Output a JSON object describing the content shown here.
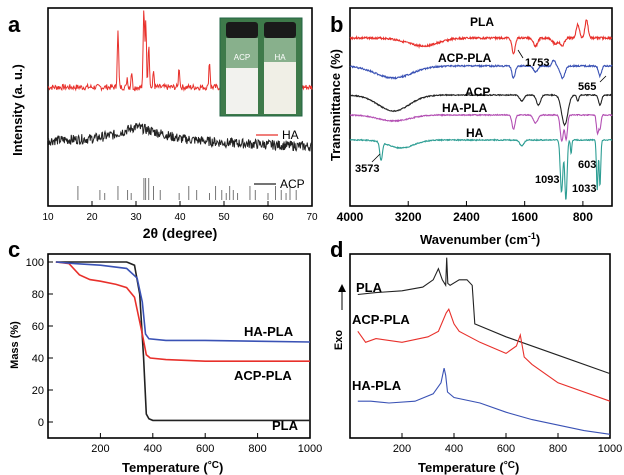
{
  "panel_labels": [
    "a",
    "b",
    "c",
    "d"
  ],
  "inset": {
    "vials": [
      "ACP",
      "HA"
    ]
  },
  "chart_data": [
    {
      "panel": "a",
      "type": "line",
      "xlabel": "2θ (degree)",
      "ylabel": "Intensity (a. u.)",
      "xlim": [
        10,
        70
      ],
      "xticks": [
        10,
        20,
        30,
        40,
        50,
        60,
        70
      ],
      "legend_position": "right",
      "series": [
        {
          "name": "HA",
          "color": "#e8302b",
          "x": [
            10,
            22,
            25.9,
            28,
            29,
            31.8,
            32.2,
            32.9,
            34,
            39.8,
            46.7,
            49.5,
            53,
            64,
            70
          ],
          "y": [
            0.58,
            0.6,
            0.88,
            0.65,
            0.68,
            1.0,
            0.95,
            0.82,
            0.68,
            0.7,
            0.73,
            0.75,
            0.66,
            0.62,
            0.6
          ]
        },
        {
          "name": "ACP",
          "color": "#222222",
          "x": [
            10,
            20,
            25,
            30,
            35,
            40,
            50,
            60,
            70
          ],
          "y": [
            0.33,
            0.34,
            0.36,
            0.4,
            0.37,
            0.34,
            0.32,
            0.31,
            0.3
          ]
        }
      ],
      "reference_peaks_2theta": [
        16.8,
        21.8,
        22.9,
        25.9,
        28.1,
        28.9,
        31.8,
        32.2,
        32.9,
        34.0,
        35.5,
        39.8,
        42.0,
        43.8,
        46.7,
        48.1,
        49.5,
        50.5,
        51.3,
        52.1,
        53.1,
        55.9,
        57.1,
        60.0,
        61.7,
        63.0,
        64.1,
        65.0,
        66.4
      ]
    },
    {
      "panel": "b",
      "type": "line",
      "xlabel": "Wavenumber (cm",
      "xlabel_sup": "-1",
      "xlabel_close": ")",
      "ylabel": "Transmittance (%)",
      "xlim": [
        4000,
        400
      ],
      "xticks": [
        4000,
        3200,
        2400,
        1600,
        800
      ],
      "xtick_labels": [
        "4000",
        "3200",
        "2400",
        "1600",
        "800"
      ],
      "series": [
        {
          "name": "PLA",
          "color": "#e8302b"
        },
        {
          "name": "ACP-PLA",
          "color": "#3a52b5"
        },
        {
          "name": "ACP",
          "color": "#222222"
        },
        {
          "name": "HA-PLA",
          "color": "#b34fb3"
        },
        {
          "name": "HA",
          "color": "#2e9e94"
        }
      ],
      "annotations": [
        "1753",
        "565",
        "3573",
        "1093",
        "1033",
        "603"
      ]
    },
    {
      "panel": "c",
      "type": "line",
      "xlabel": "Temperature (",
      "xlabel_unit": "°C",
      "xlabel_close": ")",
      "ylabel": "Mass (%)",
      "xlim": [
        0,
        1000
      ],
      "ylim": [
        -10,
        105
      ],
      "xticks": [
        200,
        400,
        600,
        800,
        1000
      ],
      "xtick_labels": [
        "200",
        "400",
        "600",
        "800",
        "1000"
      ],
      "yticks": [
        0,
        20,
        40,
        60,
        80,
        100
      ],
      "ytick_labels": [
        "0",
        "20",
        "40",
        "60",
        "80",
        "100"
      ],
      "series": [
        {
          "name": "PLA",
          "color": "#222222",
          "x": [
            30,
            300,
            330,
            350,
            365,
            375,
            385,
            400,
            600,
            1000
          ],
          "y": [
            100,
            100,
            98,
            80,
            40,
            5,
            2,
            1,
            1,
            1
          ]
        },
        {
          "name": "ACP-PLA",
          "color": "#e8302b",
          "x": [
            30,
            80,
            120,
            160,
            200,
            260,
            300,
            330,
            360,
            375,
            390,
            450,
            600,
            1000
          ],
          "y": [
            100,
            99,
            92,
            89,
            88,
            86,
            84,
            78,
            55,
            42,
            40,
            39,
            38,
            38
          ]
        },
        {
          "name": "HA-PLA",
          "color": "#3a52b5",
          "x": [
            30,
            100,
            200,
            300,
            340,
            360,
            372,
            385,
            450,
            600,
            1000
          ],
          "y": [
            100,
            99,
            98,
            96,
            90,
            75,
            55,
            52,
            51,
            51,
            50
          ]
        }
      ],
      "series_label_order": [
        "HA-PLA",
        "ACP-PLA",
        "PLA"
      ]
    },
    {
      "panel": "d",
      "type": "line",
      "xlabel": "Temperature (",
      "xlabel_unit": "°C",
      "xlabel_close": ")",
      "ylabel": "Exo",
      "xlim": [
        0,
        1000
      ],
      "xticks": [
        200,
        400,
        600,
        800,
        1000
      ],
      "xtick_labels": [
        "200",
        "400",
        "600",
        "800",
        "1000"
      ],
      "series": [
        {
          "name": "PLA",
          "color": "#222222",
          "x": [
            30,
            100,
            200,
            280,
            320,
            340,
            355,
            368,
            372,
            376,
            385,
            420,
            450,
            470,
            480,
            600,
            800,
            1000
          ],
          "y": [
            0.78,
            0.79,
            0.8,
            0.82,
            0.86,
            0.92,
            0.86,
            0.83,
            0.98,
            0.84,
            0.83,
            0.86,
            0.86,
            0.83,
            0.62,
            0.55,
            0.45,
            0.35
          ]
        },
        {
          "name": "ACP-PLA",
          "color": "#e8302b",
          "x": [
            30,
            60,
            100,
            200,
            300,
            340,
            370,
            380,
            400,
            420,
            500,
            600,
            640,
            655,
            670,
            700,
            800,
            1000
          ],
          "y": [
            0.58,
            0.52,
            0.54,
            0.52,
            0.55,
            0.58,
            0.68,
            0.7,
            0.62,
            0.58,
            0.52,
            0.46,
            0.5,
            0.56,
            0.44,
            0.4,
            0.3,
            0.2
          ]
        },
        {
          "name": "HA-PLA",
          "color": "#3a52b5",
          "x": [
            30,
            80,
            150,
            250,
            320,
            350,
            362,
            368,
            375,
            400,
            500,
            600,
            700,
            800,
            900,
            1000
          ],
          "y": [
            0.2,
            0.2,
            0.19,
            0.2,
            0.24,
            0.3,
            0.38,
            0.34,
            0.25,
            0.22,
            0.19,
            0.14,
            0.1,
            0.07,
            0.04,
            0.02
          ]
        }
      ]
    }
  ]
}
